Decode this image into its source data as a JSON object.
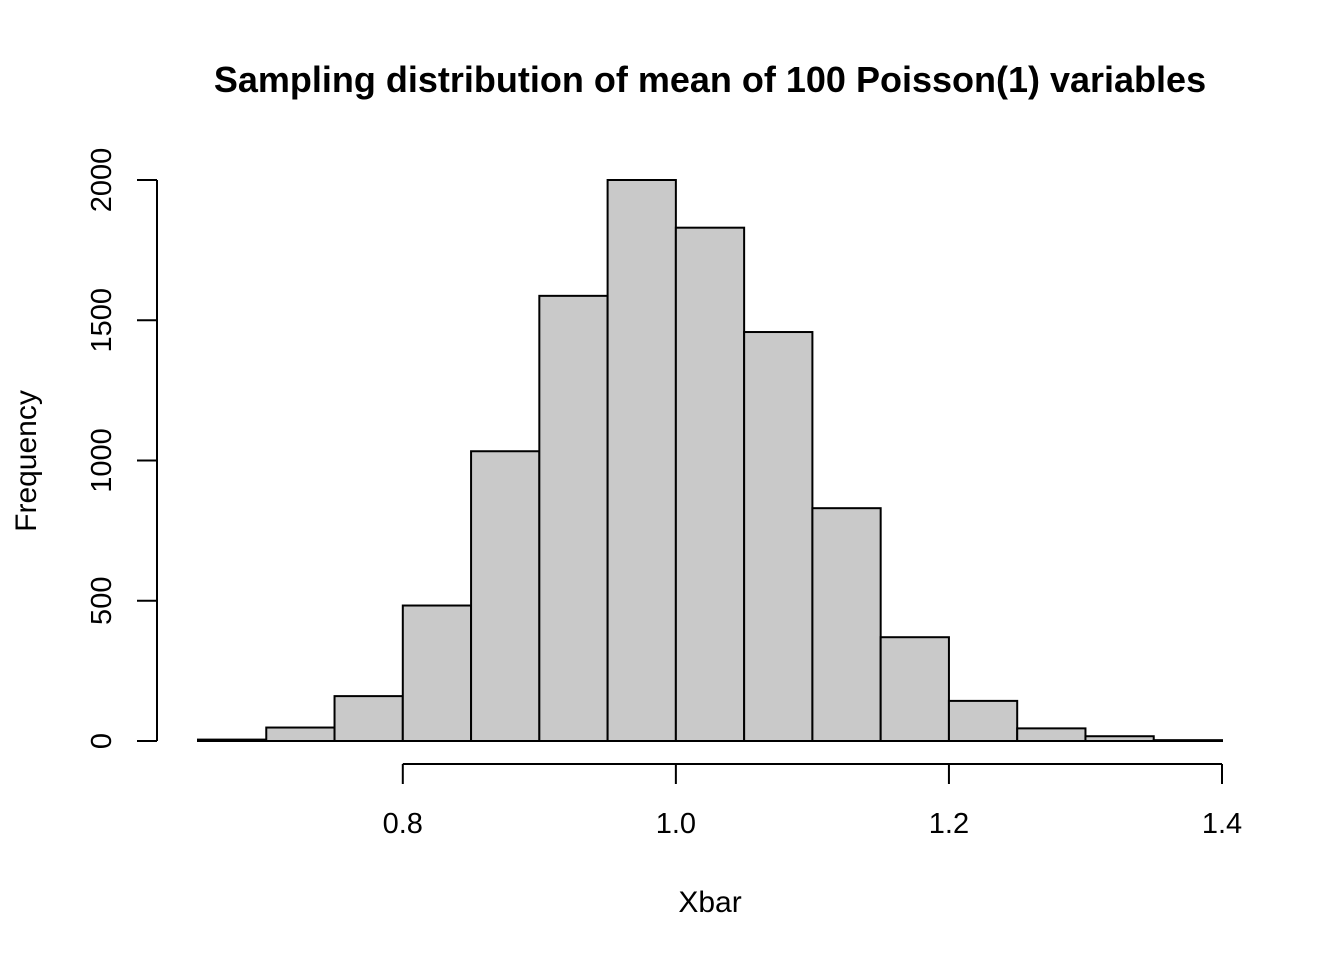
{
  "chart_data": {
    "type": "bar",
    "title": "Sampling distribution of mean of 100 Poisson(1) variables",
    "xlabel": "Xbar",
    "ylabel": "Frequency",
    "bin_edges": [
      0.65,
      0.7,
      0.75,
      0.8,
      0.85,
      0.9,
      0.95,
      1.0,
      1.05,
      1.1,
      1.15,
      1.2,
      1.25,
      1.3,
      1.35,
      1.4
    ],
    "values": [
      5,
      48,
      160,
      483,
      1033,
      1587,
      2000,
      1830,
      1458,
      830,
      370,
      143,
      45,
      17,
      3
    ],
    "xlim": [
      0.65,
      1.4
    ],
    "ylim": [
      0,
      2000
    ],
    "x_ticks": [
      0.8,
      1.0,
      1.2,
      1.4
    ],
    "x_tick_labels": [
      "0.8",
      "1.0",
      "1.2",
      "1.4"
    ],
    "y_ticks": [
      0,
      500,
      1000,
      1500,
      2000
    ],
    "y_tick_labels": [
      "0",
      "500",
      "1000",
      "1500",
      "2000"
    ],
    "bar_fill": "#c9c9c9",
    "bar_stroke": "#000000",
    "grid": false,
    "legend": "none"
  }
}
